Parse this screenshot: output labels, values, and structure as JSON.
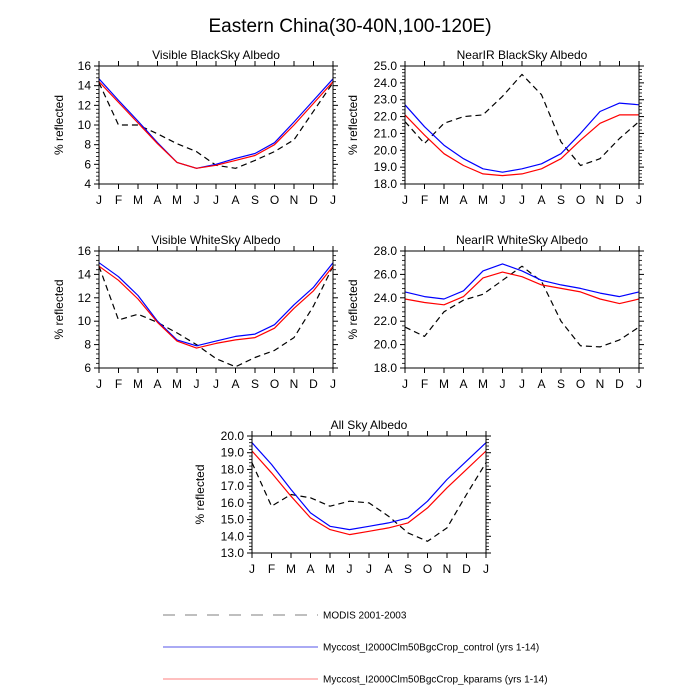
{
  "title": "Eastern China(30-40N,100-120E)",
  "chart_data": [
    {
      "type": "line",
      "title": "Visible BlackSky Albedo",
      "xlabel": "",
      "ylabel": "% reflected",
      "categories": [
        "J",
        "F",
        "M",
        "A",
        "M",
        "J",
        "J",
        "A",
        "S",
        "O",
        "N",
        "D",
        "J"
      ],
      "ylim": [
        4,
        16
      ],
      "yticks": [
        4,
        6,
        8,
        10,
        12,
        14,
        16
      ],
      "ytick_labels": [
        "4",
        "6",
        "8",
        "10",
        "12",
        "14",
        "16"
      ],
      "series": [
        {
          "name": "MODIS 2001-2003",
          "values": [
            14.3,
            10.0,
            10.0,
            9.1,
            8.1,
            7.3,
            5.9,
            5.6,
            6.4,
            7.3,
            8.5,
            11.4,
            14.3
          ]
        },
        {
          "name": "Myccost_I2000Clm50BgcCrop_control (yrs 1-14)",
          "values": [
            14.7,
            12.5,
            10.4,
            8.2,
            6.2,
            5.6,
            6.0,
            6.6,
            7.1,
            8.2,
            10.3,
            12.5,
            14.7
          ]
        },
        {
          "name": "Myccost_I2000Clm50BgcCrop_kparams (yrs 1-14)",
          "values": [
            14.4,
            12.3,
            10.2,
            8.1,
            6.2,
            5.6,
            5.9,
            6.4,
            6.9,
            8.0,
            10.0,
            12.2,
            14.4
          ]
        }
      ]
    },
    {
      "type": "line",
      "title": "NearIR BlackSky Albedo",
      "xlabel": "",
      "ylabel": "% reflected",
      "categories": [
        "J",
        "F",
        "M",
        "A",
        "M",
        "J",
        "J",
        "A",
        "S",
        "O",
        "N",
        "D",
        "J"
      ],
      "ylim": [
        18,
        25
      ],
      "yticks": [
        18,
        19,
        20,
        21,
        22,
        23,
        24,
        25
      ],
      "ytick_labels": [
        "18.0",
        "19.0",
        "20.0",
        "21.0",
        "22.0",
        "23.0",
        "24.0",
        "25.0"
      ],
      "series": [
        {
          "name": "MODIS 2001-2003",
          "values": [
            21.7,
            20.4,
            21.6,
            22.0,
            22.1,
            23.2,
            24.5,
            23.3,
            20.5,
            19.1,
            19.5,
            20.7,
            21.7
          ]
        },
        {
          "name": "Myccost_I2000Clm50BgcCrop_control (yrs 1-14)",
          "values": [
            22.7,
            21.4,
            20.3,
            19.5,
            18.9,
            18.7,
            18.9,
            19.2,
            19.8,
            21.0,
            22.3,
            22.8,
            22.7
          ]
        },
        {
          "name": "Myccost_I2000Clm50BgcCrop_kparams (yrs 1-14)",
          "values": [
            22.1,
            20.9,
            19.8,
            19.1,
            18.6,
            18.5,
            18.6,
            18.9,
            19.5,
            20.6,
            21.6,
            22.1,
            22.1
          ]
        }
      ]
    },
    {
      "type": "line",
      "title": "Visible WhiteSky Albedo",
      "xlabel": "",
      "ylabel": "% reflected",
      "categories": [
        "J",
        "F",
        "M",
        "A",
        "M",
        "J",
        "J",
        "A",
        "S",
        "O",
        "N",
        "D",
        "J"
      ],
      "ylim": [
        6,
        16
      ],
      "yticks": [
        6,
        8,
        10,
        12,
        14,
        16
      ],
      "ytick_labels": [
        "6",
        "8",
        "10",
        "12",
        "14",
        "16"
      ],
      "series": [
        {
          "name": "MODIS 2001-2003",
          "values": [
            14.7,
            10.1,
            10.6,
            9.9,
            9.0,
            8.0,
            6.8,
            6.1,
            6.9,
            7.5,
            8.6,
            11.3,
            14.7
          ]
        },
        {
          "name": "Myccost_I2000Clm50BgcCrop_control (yrs 1-14)",
          "values": [
            15.0,
            13.8,
            12.2,
            10.0,
            8.4,
            7.9,
            8.3,
            8.7,
            8.9,
            9.7,
            11.4,
            12.9,
            15.0
          ]
        },
        {
          "name": "Myccost_I2000Clm50BgcCrop_kparams (yrs 1-14)",
          "values": [
            14.7,
            13.5,
            11.9,
            9.9,
            8.3,
            7.7,
            8.1,
            8.4,
            8.6,
            9.4,
            11.1,
            12.6,
            14.7
          ]
        }
      ]
    },
    {
      "type": "line",
      "title": "NearIR WhiteSky Albedo",
      "xlabel": "",
      "ylabel": "% reflected",
      "categories": [
        "J",
        "F",
        "M",
        "A",
        "M",
        "J",
        "J",
        "A",
        "S",
        "O",
        "N",
        "D",
        "J"
      ],
      "ylim": [
        18,
        28
      ],
      "yticks": [
        18,
        20,
        22,
        24,
        26,
        28
      ],
      "ytick_labels": [
        "18.0",
        "20.0",
        "22.0",
        "24.0",
        "26.0",
        "28.0"
      ],
      "series": [
        {
          "name": "MODIS 2001-2003",
          "values": [
            21.5,
            20.7,
            22.8,
            23.8,
            24.3,
            25.5,
            26.7,
            25.4,
            22.0,
            19.9,
            19.8,
            20.4,
            21.5
          ]
        },
        {
          "name": "Myccost_I2000Clm50BgcCrop_control (yrs 1-14)",
          "values": [
            24.5,
            24.1,
            23.9,
            24.6,
            26.3,
            26.9,
            26.3,
            25.5,
            25.1,
            24.8,
            24.4,
            24.1,
            24.5
          ]
        },
        {
          "name": "Myccost_I2000Clm50BgcCrop_kparams (yrs 1-14)",
          "values": [
            23.9,
            23.6,
            23.4,
            24.1,
            25.7,
            26.2,
            25.8,
            25.1,
            24.8,
            24.5,
            23.9,
            23.5,
            23.9
          ]
        }
      ]
    },
    {
      "type": "line",
      "title": "All Sky Albedo",
      "xlabel": "",
      "ylabel": "% reflected",
      "categories": [
        "J",
        "F",
        "M",
        "A",
        "M",
        "J",
        "J",
        "A",
        "S",
        "O",
        "N",
        "D",
        "J"
      ],
      "ylim": [
        13,
        20
      ],
      "yticks": [
        13,
        14,
        15,
        16,
        17,
        18,
        19,
        20
      ],
      "ytick_labels": [
        "13.0",
        "14.0",
        "15.0",
        "16.0",
        "17.0",
        "18.0",
        "19.0",
        "20.0"
      ],
      "series": [
        {
          "name": "MODIS 2001-2003",
          "values": [
            18.4,
            15.8,
            16.5,
            16.3,
            15.8,
            16.1,
            16.0,
            15.2,
            14.2,
            13.7,
            14.5,
            16.5,
            18.4
          ]
        },
        {
          "name": "Myccost_I2000Clm50BgcCrop_control (yrs 1-14)",
          "values": [
            19.6,
            18.3,
            16.8,
            15.4,
            14.6,
            14.4,
            14.6,
            14.8,
            15.1,
            16.1,
            17.4,
            18.5,
            19.6
          ]
        },
        {
          "name": "Myccost_I2000Clm50BgcCrop_kparams (yrs 1-14)",
          "values": [
            19.1,
            17.8,
            16.4,
            15.1,
            14.4,
            14.1,
            14.3,
            14.5,
            14.8,
            15.7,
            16.9,
            18.0,
            19.1
          ]
        }
      ]
    }
  ],
  "legend": {
    "placement": "bottom-center",
    "entries": [
      {
        "label": "MODIS 2001-2003",
        "style": "dashed",
        "color": "#000000"
      },
      {
        "label": "Myccost_I2000Clm50BgcCrop_control (yrs 1-14)",
        "style": "solid",
        "color": "#0000ff"
      },
      {
        "label": "Myccost_I2000Clm50BgcCrop_kparams (yrs 1-14)",
        "style": "solid",
        "color": "#ff0000"
      }
    ]
  },
  "colors": {
    "modis": "#000000",
    "control": "#0000ff",
    "kparams": "#ff0000",
    "legend_modis": "#aaaaaa",
    "legend_control": "#7777ee",
    "legend_kparams": "#ffaaaa"
  }
}
